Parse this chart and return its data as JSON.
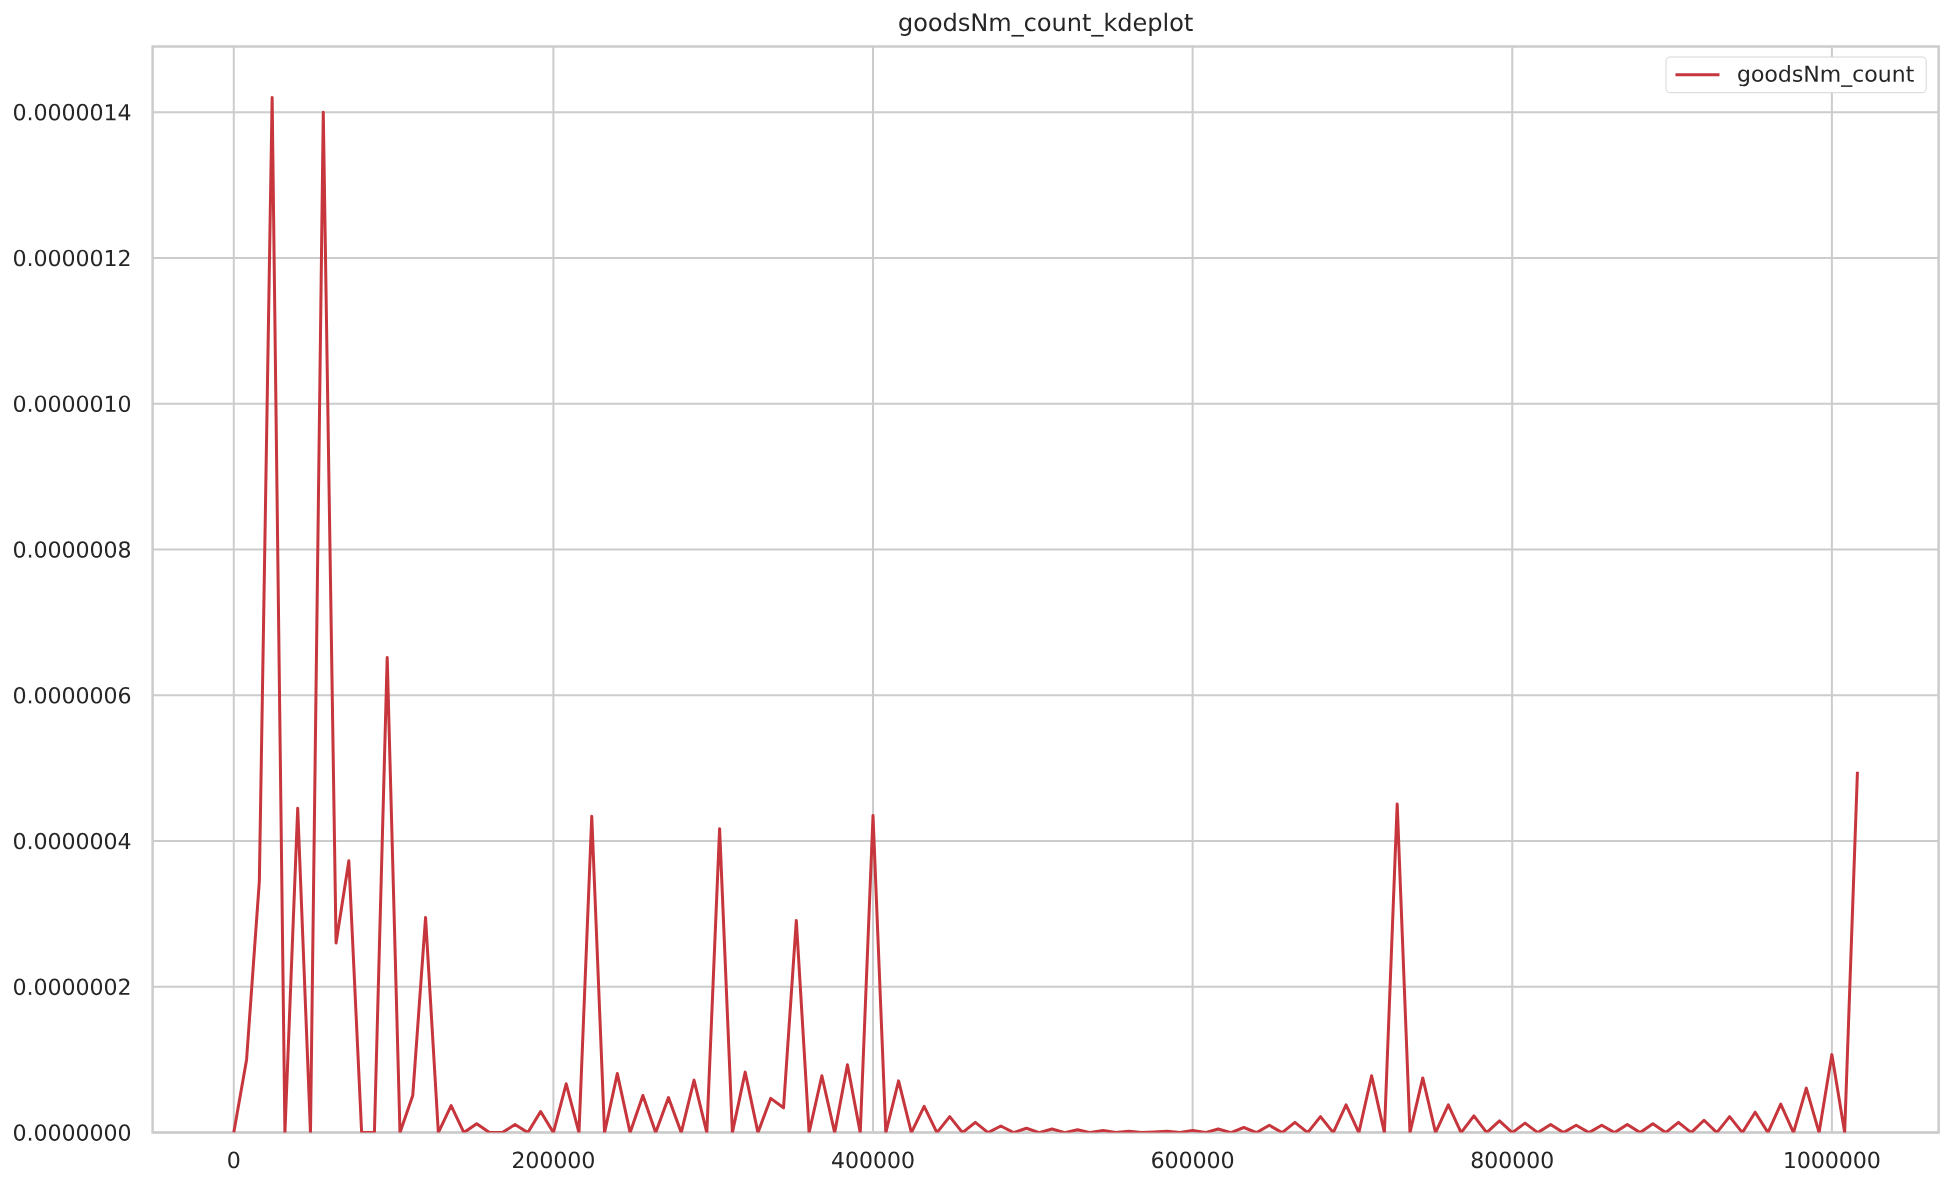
{
  "chart_data": {
    "type": "line",
    "title": "goodsNm_count_kdeplot",
    "x": [
      0,
      8000,
      16000,
      24000,
      32000,
      40000,
      48000,
      56000,
      64000,
      72000,
      80000,
      88000,
      96000,
      104000,
      112000,
      120000,
      128000,
      136000,
      144000,
      152000,
      160000,
      168000,
      176000,
      184000,
      192000,
      200000,
      208000,
      216000,
      224000,
      232000,
      240000,
      248000,
      256000,
      264000,
      272000,
      280000,
      288000,
      296000,
      304000,
      312000,
      320000,
      328000,
      336000,
      344000,
      352000,
      360000,
      368000,
      376000,
      384000,
      392000,
      400000,
      408000,
      416000,
      424000,
      432000,
      440000,
      448000,
      456000,
      464000,
      472000,
      480000,
      488000,
      496000,
      504000,
      512000,
      520000,
      528000,
      536000,
      544000,
      552000,
      560000,
      568000,
      576000,
      584000,
      592000,
      600000,
      608000,
      616000,
      624000,
      632000,
      640000,
      648000,
      656000,
      664000,
      672000,
      680000,
      688000,
      696000,
      704000,
      712000,
      720000,
      728000,
      736000,
      744000,
      752000,
      760000,
      768000,
      776000,
      784000,
      792000,
      800000,
      808000,
      816000,
      824000,
      832000,
      840000,
      848000,
      856000,
      864000,
      872000,
      880000,
      888000,
      896000,
      904000,
      912000,
      920000,
      928000,
      936000,
      944000,
      952000,
      960000,
      968000,
      976000,
      984000,
      992000,
      1000000,
      1008000,
      1016000
    ],
    "series": [
      {
        "name": "goodsNm_count",
        "color": "#c6363c",
        "values": [
          0,
          1e-07,
          3.45e-07,
          1.42e-06,
          0,
          4.45e-07,
          0,
          1.4e-06,
          2.6e-07,
          3.73e-07,
          0,
          0,
          6.52e-07,
          0,
          5.1e-08,
          2.95e-07,
          0,
          3.7e-08,
          0,
          1.2e-08,
          0,
          0,
          1.1e-08,
          0,
          2.9e-08,
          0,
          6.7e-08,
          0,
          4.34e-07,
          0,
          8.1e-08,
          0,
          5.1e-08,
          0,
          4.8e-08,
          0,
          7.2e-08,
          0,
          4.17e-07,
          0,
          8.3e-08,
          0,
          4.7e-08,
          3.4e-08,
          2.91e-07,
          0,
          7.8e-08,
          0,
          9.3e-08,
          0,
          4.35e-07,
          0,
          7.1e-08,
          0,
          3.6e-08,
          0,
          2.2e-08,
          0,
          1.4e-08,
          0,
          9e-09,
          0,
          6e-09,
          0,
          5e-09,
          0,
          4e-09,
          0,
          3e-09,
          0,
          2e-09,
          0,
          1e-09,
          2e-09,
          0,
          3e-09,
          0,
          5e-09,
          0,
          7e-09,
          0,
          1e-08,
          0,
          1.4e-08,
          0,
          2.2e-08,
          0,
          3.8e-08,
          0,
          7.8e-08,
          0,
          4.51e-07,
          0,
          7.5e-08,
          0,
          3.8e-08,
          0,
          2.3e-08,
          0,
          1.6e-08,
          0,
          1.3e-08,
          0,
          1.1e-08,
          0,
          1e-08,
          0,
          1e-08,
          0,
          1.1e-08,
          0,
          1.2e-08,
          0,
          1.4e-08,
          0,
          1.7e-08,
          0,
          2.2e-08,
          0,
          2.8e-08,
          0,
          3.9e-08,
          0,
          6.1e-08,
          0,
          1.07e-07,
          0,
          4.95e-07
        ]
      }
    ],
    "xlim": [
      -50800,
      1066800
    ],
    "ylim": [
      0,
      1.49e-06
    ],
    "xticks": [
      0,
      200000,
      400000,
      600000,
      800000,
      1000000
    ],
    "yticks": [
      {
        "value": 0,
        "label": "0.0000000"
      },
      {
        "value": 2e-07,
        "label": "0.0000002"
      },
      {
        "value": 4e-07,
        "label": "0.0000004"
      },
      {
        "value": 6e-07,
        "label": "0.0000006"
      },
      {
        "value": 8e-07,
        "label": "0.0000008"
      },
      {
        "value": 1e-06,
        "label": "0.0000010"
      },
      {
        "value": 1.2e-06,
        "label": "0.0000012"
      },
      {
        "value": 1.4e-06,
        "label": "0.0000014"
      }
    ],
    "grid": true,
    "legend": "top right"
  }
}
